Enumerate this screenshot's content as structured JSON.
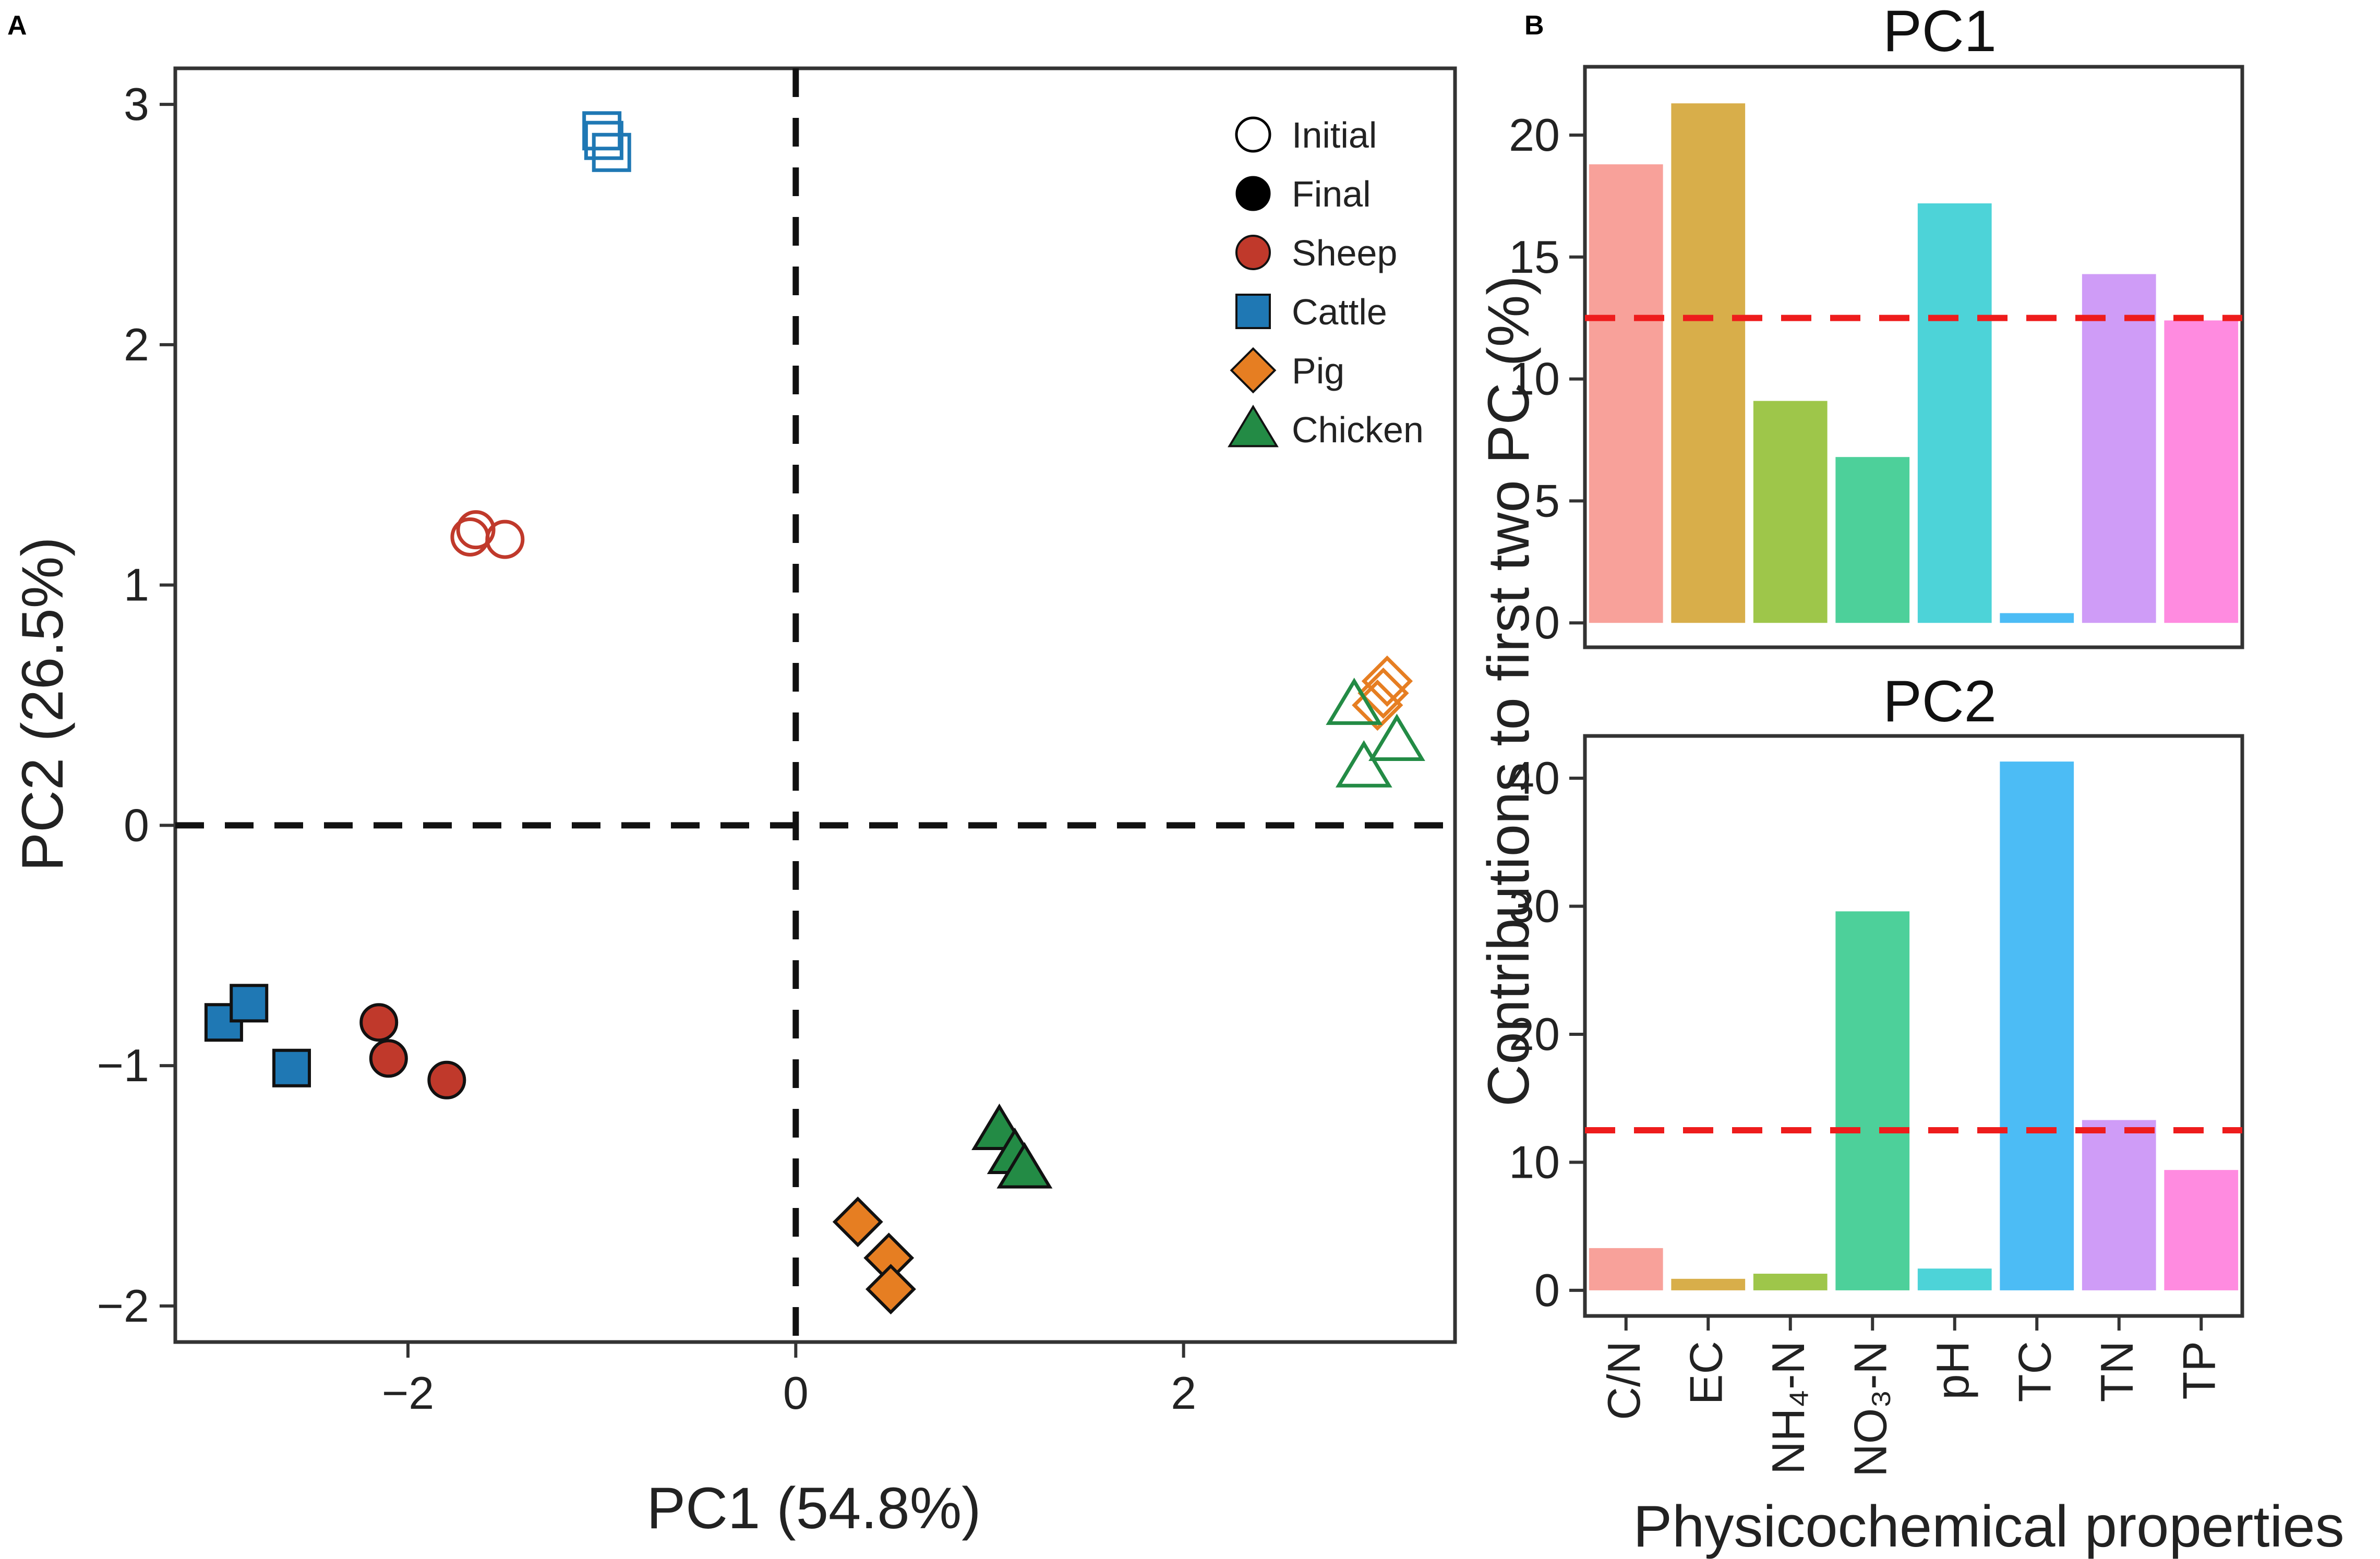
{
  "colors": {
    "sheep": "#c0392b",
    "cattle": "#1f78b4",
    "pig": "#e67e22",
    "chicken": "#238b45",
    "threshold": "#ee1c1c",
    "bars": [
      "#f8a19a",
      "#d8ae4a",
      "#9ec64a",
      "#4dd09a",
      "#4dd3d8",
      "#4cbcf5",
      "#cf9cf7",
      "#ff8be0"
    ]
  },
  "chart_data": [
    {
      "type": "scatter",
      "panel_label": "A",
      "title": "",
      "xlabel": "PC1 (54.8%)",
      "ylabel": "PC2 (26.5%)",
      "xlim": [
        -3.2,
        3.4
      ],
      "ylim": [
        -2.15,
        3.15
      ],
      "xticks": [
        -2,
        0,
        2
      ],
      "xtick_labels": [
        "−2",
        "0",
        "2"
      ],
      "yticks": [
        -2,
        -1,
        0,
        1,
        2,
        3
      ],
      "ytick_labels": [
        "−2",
        "−1",
        "0",
        "1",
        "2",
        "3"
      ],
      "reference_lines": {
        "x": 0,
        "y": 0
      },
      "legend": {
        "position": "top-right",
        "stage": [
          {
            "label": "Initial",
            "icon": "open-circle-icon"
          },
          {
            "label": "Final",
            "icon": "filled-circle-icon"
          }
        ],
        "group": [
          {
            "label": "Sheep",
            "icon": "circle-icon",
            "color_key": "sheep"
          },
          {
            "label": "Cattle",
            "icon": "square-icon",
            "color_key": "cattle"
          },
          {
            "label": "Pig",
            "icon": "diamond-icon",
            "color_key": "pig"
          },
          {
            "label": "Chicken",
            "icon": "triangle-icon",
            "color_key": "chicken"
          }
        ]
      },
      "series": [
        {
          "name": "Sheep",
          "stage": "Initial",
          "shape": "circle",
          "points": [
            [
              -1.65,
              1.23
            ],
            [
              -1.5,
              1.19
            ],
            [
              -1.68,
              1.2
            ]
          ]
        },
        {
          "name": "Cattle",
          "stage": "Initial",
          "shape": "square",
          "points": [
            [
              -1.0,
              2.89
            ],
            [
              -0.95,
              2.8
            ],
            [
              -0.99,
              2.85
            ]
          ]
        },
        {
          "name": "Pig",
          "stage": "Initial",
          "shape": "diamond",
          "points": [
            [
              3.05,
              0.6
            ],
            [
              3.0,
              0.5
            ],
            [
              3.03,
              0.55
            ]
          ]
        },
        {
          "name": "Chicken",
          "stage": "Initial",
          "shape": "triangle",
          "points": [
            [
              2.88,
              0.5
            ],
            [
              3.1,
              0.35
            ],
            [
              2.93,
              0.24
            ]
          ]
        },
        {
          "name": "Sheep",
          "stage": "Final",
          "shape": "circle",
          "points": [
            [
              -2.15,
              -0.82
            ],
            [
              -2.1,
              -0.97
            ],
            [
              -1.8,
              -1.06
            ]
          ]
        },
        {
          "name": "Cattle",
          "stage": "Final",
          "shape": "square",
          "points": [
            [
              -2.95,
              -0.82
            ],
            [
              -2.82,
              -0.74
            ],
            [
              -2.6,
              -1.01
            ]
          ]
        },
        {
          "name": "Pig",
          "stage": "Final",
          "shape": "diamond",
          "points": [
            [
              0.32,
              -1.65
            ],
            [
              0.48,
              -1.8
            ],
            [
              0.49,
              -1.93
            ]
          ]
        },
        {
          "name": "Chicken",
          "stage": "Final",
          "shape": "triangle",
          "points": [
            [
              1.05,
              -1.27
            ],
            [
              1.13,
              -1.37
            ],
            [
              1.18,
              -1.43
            ]
          ]
        }
      ]
    },
    {
      "type": "bar",
      "panel_label": "B",
      "title": "PC1",
      "categories": [
        "C/N",
        "EC",
        "NH₄-N",
        "NO₃-N",
        "pH",
        "TC",
        "TN",
        "TP"
      ],
      "values": [
        18.8,
        21.3,
        9.1,
        6.8,
        17.2,
        0.4,
        14.3,
        12.4
      ],
      "threshold": 12.5,
      "ylim": [
        -1.0,
        22.8
      ],
      "yticks": [
        0,
        5,
        10,
        15,
        20
      ],
      "ytick_labels": [
        "0",
        "5",
        "10",
        "15",
        "20"
      ]
    },
    {
      "type": "bar",
      "title": "PC2",
      "categories": [
        "C/N",
        "EC",
        "NH₄-N",
        "NO₃-N",
        "pH",
        "TC",
        "TN",
        "TP"
      ],
      "values": [
        3.3,
        0.9,
        1.3,
        29.6,
        1.7,
        41.3,
        13.3,
        9.4
      ],
      "threshold": 12.5,
      "xlabel": "Physicochemical properties",
      "ylabel": "Contributions to first two PC (%)",
      "ylim": [
        -2.0,
        43.3
      ],
      "yticks": [
        0,
        10,
        20,
        30,
        40
      ],
      "ytick_labels": [
        "0",
        "10",
        "20",
        "30",
        "40"
      ]
    }
  ]
}
